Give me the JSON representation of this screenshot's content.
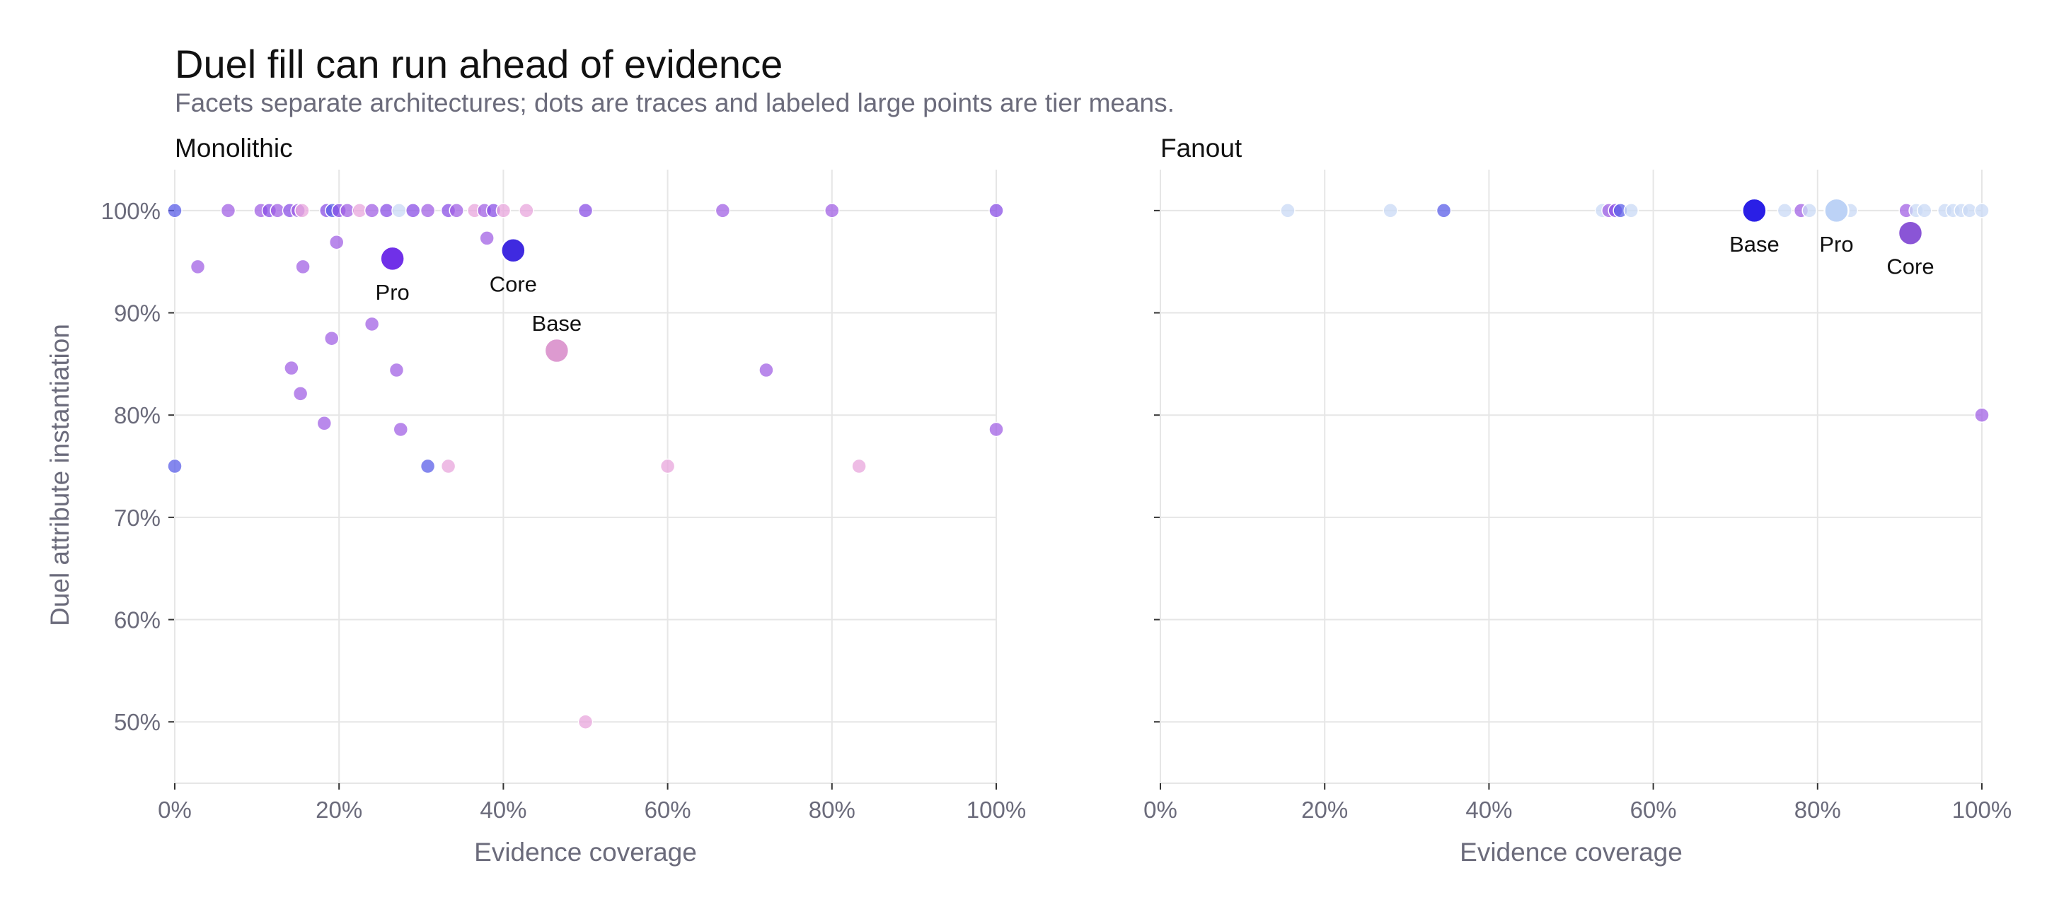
{
  "title": "Duel fill can run ahead of evidence",
  "subtitle": "Facets separate architectures; dots are traces and labeled large points are tier means.",
  "colors": {
    "Base": "#dd9ad0",
    "Core": "#3f2ae0",
    "Pro": "#7030e8",
    "Base_fanout": "#2a1fe6",
    "Pro_fanout": "#bcd2f6",
    "Core_fanout": "#8a55d6",
    "violet": "#8a4fe6",
    "blue": "#5b5fe8",
    "pink": "#e8a6dc",
    "lightblue": "#c9d9f6",
    "purple": "#a262e4",
    "grid": "#e6e6e6",
    "text": "#111111",
    "muted": "#6b6b7b"
  },
  "chart_data": {
    "type": "scatter",
    "ylabel": "Duel attribute instantiation",
    "xlabel": "Evidence coverage",
    "xlim": [
      0,
      100
    ],
    "ylim": [
      44,
      104
    ],
    "x_ticks": [
      0,
      20,
      40,
      60,
      80,
      100
    ],
    "x_tick_labels": [
      "0%",
      "20%",
      "40%",
      "60%",
      "80%",
      "100%"
    ],
    "y_ticks": [
      50,
      60,
      70,
      80,
      90,
      100
    ],
    "y_tick_labels": [
      "50%",
      "60%",
      "70%",
      "80%",
      "90%",
      "100%"
    ],
    "grid": true,
    "facets": [
      {
        "name": "Monolithic",
        "traces": [
          {
            "x": 0,
            "y": 100,
            "c": "blue"
          },
          {
            "x": 6.5,
            "y": 100,
            "c": "purple"
          },
          {
            "x": 10.5,
            "y": 100,
            "c": "purple"
          },
          {
            "x": 11.5,
            "y": 100,
            "c": "violet"
          },
          {
            "x": 12.5,
            "y": 100,
            "c": "purple"
          },
          {
            "x": 14,
            "y": 100,
            "c": "violet"
          },
          {
            "x": 15,
            "y": 100,
            "c": "purple"
          },
          {
            "x": 15.5,
            "y": 100,
            "c": "pink"
          },
          {
            "x": 18.5,
            "y": 100,
            "c": "violet"
          },
          {
            "x": 19.2,
            "y": 100,
            "c": "blue"
          },
          {
            "x": 20,
            "y": 100,
            "c": "violet"
          },
          {
            "x": 21,
            "y": 100,
            "c": "purple"
          },
          {
            "x": 22.5,
            "y": 100,
            "c": "pink"
          },
          {
            "x": 24,
            "y": 100,
            "c": "purple"
          },
          {
            "x": 25.8,
            "y": 100,
            "c": "violet"
          },
          {
            "x": 27.3,
            "y": 100,
            "c": "lightblue"
          },
          {
            "x": 29,
            "y": 100,
            "c": "violet"
          },
          {
            "x": 30.8,
            "y": 100,
            "c": "purple"
          },
          {
            "x": 33.3,
            "y": 100,
            "c": "violet"
          },
          {
            "x": 34.3,
            "y": 100,
            "c": "purple"
          },
          {
            "x": 36.5,
            "y": 100,
            "c": "pink"
          },
          {
            "x": 37.7,
            "y": 100,
            "c": "purple"
          },
          {
            "x": 38.8,
            "y": 100,
            "c": "violet"
          },
          {
            "x": 40,
            "y": 100,
            "c": "pink"
          },
          {
            "x": 42.8,
            "y": 100,
            "c": "pink"
          },
          {
            "x": 50,
            "y": 100,
            "c": "violet"
          },
          {
            "x": 66.7,
            "y": 100,
            "c": "purple"
          },
          {
            "x": 80,
            "y": 100,
            "c": "purple"
          },
          {
            "x": 100,
            "y": 100,
            "c": "violet"
          },
          {
            "x": 2.8,
            "y": 94.5,
            "c": "purple"
          },
          {
            "x": 15.6,
            "y": 94.5,
            "c": "purple"
          },
          {
            "x": 19.7,
            "y": 96.9,
            "c": "purple"
          },
          {
            "x": 38,
            "y": 97.3,
            "c": "purple"
          },
          {
            "x": 24,
            "y": 88.9,
            "c": "purple"
          },
          {
            "x": 19.1,
            "y": 87.5,
            "c": "purple"
          },
          {
            "x": 14.2,
            "y": 84.6,
            "c": "purple"
          },
          {
            "x": 27,
            "y": 84.4,
            "c": "purple"
          },
          {
            "x": 72,
            "y": 84.4,
            "c": "purple"
          },
          {
            "x": 15.3,
            "y": 82.1,
            "c": "purple"
          },
          {
            "x": 18.2,
            "y": 79.2,
            "c": "purple"
          },
          {
            "x": 27.5,
            "y": 78.6,
            "c": "purple"
          },
          {
            "x": 100,
            "y": 78.6,
            "c": "purple"
          },
          {
            "x": 0,
            "y": 75,
            "c": "blue"
          },
          {
            "x": 30.8,
            "y": 75,
            "c": "blue"
          },
          {
            "x": 33.3,
            "y": 75,
            "c": "pink"
          },
          {
            "x": 60,
            "y": 75,
            "c": "pink"
          },
          {
            "x": 83.3,
            "y": 75,
            "c": "pink"
          },
          {
            "x": 50,
            "y": 50,
            "c": "pink"
          }
        ],
        "means": [
          {
            "label": "Pro",
            "x": 26.5,
            "y": 95.3,
            "c": "Pro",
            "label_pos": "below"
          },
          {
            "label": "Core",
            "x": 41.2,
            "y": 96.1,
            "c": "Core",
            "label_pos": "below"
          },
          {
            "label": "Base",
            "x": 46.5,
            "y": 86.3,
            "c": "Base",
            "label_pos": "above"
          }
        ]
      },
      {
        "name": "Fanout",
        "traces": [
          {
            "x": 15.5,
            "y": 100,
            "c": "lightblue"
          },
          {
            "x": 28,
            "y": 100,
            "c": "lightblue"
          },
          {
            "x": 34.5,
            "y": 100,
            "c": "blue"
          },
          {
            "x": 53.8,
            "y": 100,
            "c": "lightblue"
          },
          {
            "x": 54.6,
            "y": 100,
            "c": "purple"
          },
          {
            "x": 55.4,
            "y": 100,
            "c": "violet"
          },
          {
            "x": 56,
            "y": 100,
            "c": "blue"
          },
          {
            "x": 57.3,
            "y": 100,
            "c": "lightblue"
          },
          {
            "x": 76,
            "y": 100,
            "c": "lightblue"
          },
          {
            "x": 78,
            "y": 100,
            "c": "purple"
          },
          {
            "x": 79,
            "y": 100,
            "c": "lightblue"
          },
          {
            "x": 84,
            "y": 100,
            "c": "lightblue"
          },
          {
            "x": 90.8,
            "y": 100,
            "c": "purple"
          },
          {
            "x": 92,
            "y": 100,
            "c": "lightblue"
          },
          {
            "x": 93,
            "y": 100,
            "c": "lightblue"
          },
          {
            "x": 95.5,
            "y": 100,
            "c": "lightblue"
          },
          {
            "x": 96.5,
            "y": 100,
            "c": "lightblue"
          },
          {
            "x": 97.5,
            "y": 100,
            "c": "lightblue"
          },
          {
            "x": 98.5,
            "y": 100,
            "c": "lightblue"
          },
          {
            "x": 100,
            "y": 100,
            "c": "lightblue"
          },
          {
            "x": 100,
            "y": 80,
            "c": "purple"
          }
        ],
        "means": [
          {
            "label": "Base",
            "x": 72.3,
            "y": 100,
            "c": "Base_fanout",
            "label_pos": "below"
          },
          {
            "label": "Pro",
            "x": 82.3,
            "y": 100,
            "c": "Pro_fanout",
            "label_pos": "below"
          },
          {
            "label": "Core",
            "x": 91.3,
            "y": 97.8,
            "c": "Core_fanout",
            "label_pos": "below"
          }
        ]
      }
    ]
  }
}
